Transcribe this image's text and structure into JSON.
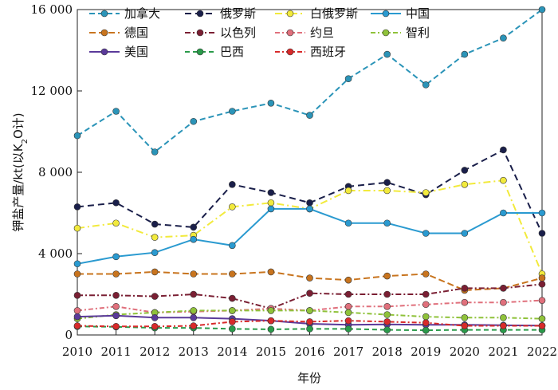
{
  "chart_data": {
    "type": "line",
    "xlabel": "年份",
    "ylabel": "钾盐产量/kt(以K",
    "ylabel_sub": "2",
    "ylabel_tail": "O计)",
    "xlim": [
      2010,
      2022
    ],
    "ylim": [
      0,
      16000
    ],
    "y_ticks": [
      0,
      4000,
      8000,
      12000,
      16000
    ],
    "y_tick_labels": [
      "0",
      "4 000",
      "8 000",
      "12 000",
      "16 000"
    ],
    "x": [
      2010,
      2011,
      2012,
      2013,
      2014,
      2015,
      2016,
      2017,
      2018,
      2019,
      2020,
      2021,
      2022
    ],
    "x_tick_labels": [
      "2010",
      "2011",
      "2012",
      "2013",
      "2014",
      "2015",
      "2016",
      "2017",
      "2018",
      "2019",
      "2020",
      "2021",
      "2022"
    ],
    "legend_position": "top-left",
    "grid": false,
    "series": [
      {
        "name": "加拿大",
        "color": "#2b94b8",
        "dash": "7,4",
        "marker": true,
        "values": [
          9800,
          11000,
          9000,
          10500,
          11000,
          11400,
          10800,
          12600,
          13800,
          12300,
          13800,
          14600,
          16000
        ]
      },
      {
        "name": "俄罗斯",
        "color": "#1a1f4a",
        "dash": "8,5",
        "marker": true,
        "values": [
          6300,
          6500,
          5450,
          5300,
          7400,
          7000,
          6500,
          7300,
          7500,
          6900,
          8100,
          9100,
          5000
        ]
      },
      {
        "name": "白俄罗斯",
        "color": "#f2ea3c",
        "dash": "9,4,2,4",
        "marker": true,
        "values": [
          5250,
          5500,
          4800,
          4900,
          6300,
          6500,
          6200,
          7100,
          7100,
          7000,
          7400,
          7600,
          3000
        ]
      },
      {
        "name": "中国",
        "color": "#2a9ad0",
        "dash": "",
        "marker": true,
        "values": [
          3500,
          3850,
          4050,
          4700,
          4400,
          6200,
          6200,
          5500,
          5500,
          5000,
          5000,
          6000,
          6000
        ]
      },
      {
        "name": "德国",
        "color": "#c8741e",
        "dash": "8,4",
        "marker": true,
        "values": [
          3000,
          3000,
          3100,
          3000,
          3000,
          3100,
          2800,
          2700,
          2900,
          3000,
          2200,
          2300,
          2800
        ]
      },
      {
        "name": "以色列",
        "color": "#7a1f33",
        "dash": "7,3,2,3",
        "marker": true,
        "values": [
          1950,
          1950,
          1900,
          2000,
          1800,
          1300,
          2050,
          2000,
          2000,
          2000,
          2300,
          2300,
          2500
        ]
      },
      {
        "name": "约旦",
        "color": "#e0707c",
        "dash": "6,3,2,3",
        "marker": true,
        "values": [
          1200,
          1400,
          1100,
          1150,
          1200,
          1300,
          1200,
          1400,
          1400,
          1500,
          1600,
          1600,
          1700
        ]
      },
      {
        "name": "智利",
        "color": "#8fc23a",
        "dash": "6,3,2,3",
        "marker": true,
        "values": [
          800,
          1000,
          1100,
          1200,
          1200,
          1200,
          1200,
          1100,
          1000,
          900,
          850,
          850,
          800
        ]
      },
      {
        "name": "美国",
        "color": "#5b3a9a",
        "dash": "",
        "marker": true,
        "values": [
          900,
          950,
          850,
          850,
          800,
          700,
          550,
          500,
          520,
          500,
          500,
          480,
          460
        ]
      },
      {
        "name": "巴西",
        "color": "#2a9a4a",
        "dash": "6,4",
        "marker": true,
        "values": [
          420,
          400,
          350,
          350,
          300,
          280,
          300,
          300,
          250,
          230,
          250,
          250,
          250
        ]
      },
      {
        "name": "西班牙",
        "color": "#d82a2a",
        "dash": "6,3,2,3",
        "marker": true,
        "values": [
          450,
          420,
          420,
          450,
          650,
          700,
          650,
          700,
          650,
          600,
          450,
          450,
          450
        ]
      }
    ]
  }
}
